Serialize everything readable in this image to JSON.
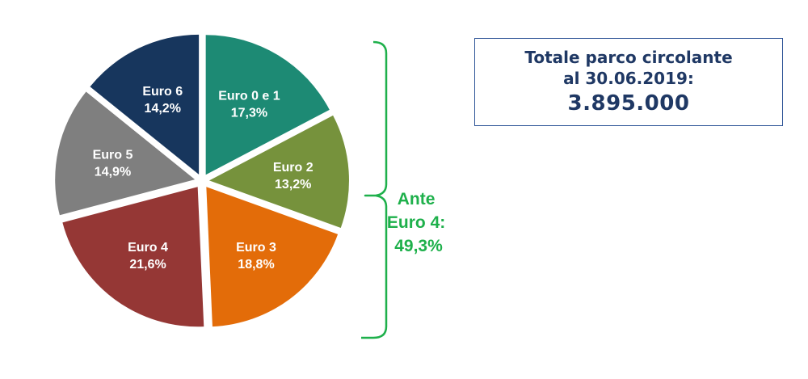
{
  "chart_data": {
    "type": "pie",
    "slices": [
      {
        "label": "Euro 0 e 1",
        "value": 17.3,
        "value_label": "17,3%",
        "color": "#1d8a74"
      },
      {
        "label": "Euro 2",
        "value": 13.2,
        "value_label": "13,2%",
        "color": "#76923c"
      },
      {
        "label": "Euro 3",
        "value": 18.8,
        "value_label": "18,8%",
        "color": "#e36c09"
      },
      {
        "label": "Euro 4",
        "value": 21.6,
        "value_label": "21,6%",
        "color": "#953735"
      },
      {
        "label": "Euro 5",
        "value": 14.9,
        "value_label": "14,9%",
        "color": "#7f7f7f"
      },
      {
        "label": "Euro 6",
        "value": 14.2,
        "value_label": "14,2%",
        "color": "#17365d"
      }
    ],
    "bracket": {
      "lines": [
        "Ante",
        "Euro 4:",
        "49,3%"
      ],
      "covers": [
        "Euro 0 e 1",
        "Euro 2",
        "Euro 3"
      ],
      "color": "#1eb04b"
    }
  },
  "total_box": {
    "line1": "Totale parco circolante",
    "line2": "al 30.06.2019:",
    "value": "3.895.000"
  }
}
